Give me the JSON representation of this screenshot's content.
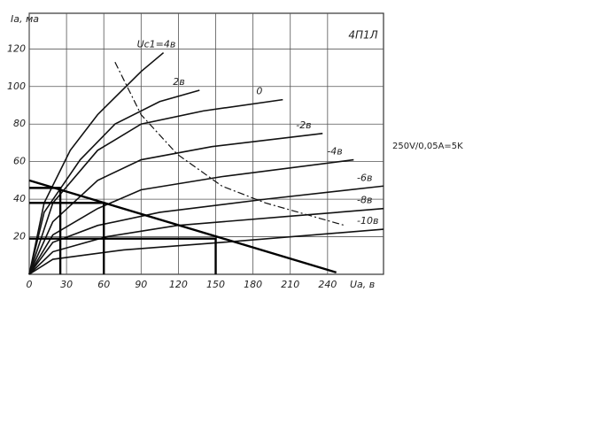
{
  "chart_data": {
    "type": "line",
    "title": "4П1Л",
    "y_label": "Ia, ма",
    "x_label": "Ua, в",
    "annotation": "250V/0,05A=5K",
    "xlim": [
      0,
      285
    ],
    "ylim": [
      0,
      139
    ],
    "xticks": [
      0,
      30,
      60,
      90,
      120,
      150,
      180,
      210,
      240
    ],
    "yticks": [
      20,
      40,
      60,
      80,
      100,
      120
    ],
    "grid": true,
    "series": [
      {
        "name": "Uc1=4в",
        "color": "#111111",
        "x": [
          0,
          12,
          33,
          55,
          90,
          108
        ],
        "values": [
          0,
          38,
          66,
          85,
          108,
          118
        ]
      },
      {
        "name": "2в",
        "color": "#111111",
        "x": [
          0,
          12,
          41,
          69,
          105,
          137
        ],
        "values": [
          0,
          33,
          61,
          80,
          92,
          98
        ]
      },
      {
        "name": "0",
        "color": "#111111",
        "x": [
          0,
          19,
          55,
          90,
          140,
          204
        ],
        "values": [
          0,
          38,
          66,
          80,
          87,
          93
        ]
      },
      {
        "name": "-2в",
        "color": "#111111",
        "x": [
          0,
          19,
          55,
          90,
          147,
          236
        ],
        "values": [
          0,
          28,
          50,
          61,
          68,
          75
        ]
      },
      {
        "name": "-4в",
        "color": "#111111",
        "x": [
          0,
          19,
          55,
          90,
          155,
          261
        ],
        "values": [
          0,
          21,
          35,
          45,
          52,
          61
        ]
      },
      {
        "name": "-6в",
        "color": "#111111",
        "x": [
          0,
          19,
          55,
          105,
          190,
          285
        ],
        "values": [
          0,
          17,
          26,
          33,
          40,
          47
        ]
      },
      {
        "name": "-8в",
        "color": "#111111",
        "x": [
          0,
          19,
          62,
          119,
          211,
          285
        ],
        "values": [
          0,
          12,
          20,
          26,
          31,
          35
        ]
      },
      {
        "name": "-10в",
        "color": "#111111",
        "x": [
          0,
          19,
          76,
          155,
          285
        ],
        "values": [
          0,
          8,
          13,
          17,
          24
        ]
      }
    ],
    "power_limit": {
      "color": "#111111",
      "x": [
        69,
        90,
        119,
        155,
        190,
        254
      ],
      "values": [
        113,
        85,
        64,
        47,
        38,
        26
      ]
    },
    "load_line": {
      "color": "#000000",
      "x": [
        0,
        247
      ],
      "values": [
        50,
        1
      ]
    },
    "operating_points": {
      "x": [
        25,
        60,
        150
      ],
      "values": [
        46,
        38,
        19
      ]
    }
  }
}
